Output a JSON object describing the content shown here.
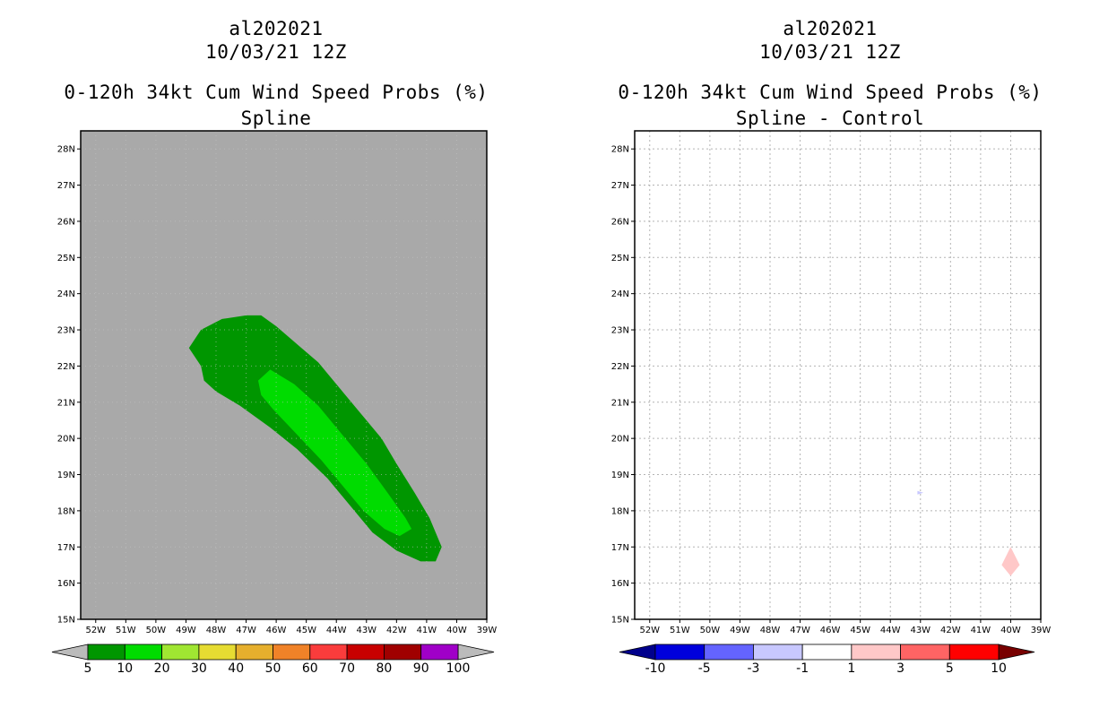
{
  "chart_data": [
    {
      "type": "heatmap",
      "storm_id": "al202021",
      "datetime": "10/03/21 12Z",
      "title": "0-120h 34kt Cum Wind Speed Probs (%)",
      "subtitle": "Spline",
      "x_ticks": [
        "52W",
        "51W",
        "50W",
        "49W",
        "48W",
        "47W",
        "46W",
        "45W",
        "44W",
        "43W",
        "42W",
        "41W",
        "40W",
        "39W"
      ],
      "y_ticks": [
        "15N",
        "16N",
        "17N",
        "18N",
        "19N",
        "20N",
        "21N",
        "22N",
        "23N",
        "24N",
        "25N",
        "26N",
        "27N",
        "28N"
      ],
      "xlim": [
        -52.5,
        -39
      ],
      "ylim": [
        15,
        28.5
      ],
      "background": "#a9a9a9",
      "contours": [
        {
          "level": "5-10",
          "color": "#009600",
          "lonlat": [
            [
              -48.9,
              22.5
            ],
            [
              -48.5,
              23.0
            ],
            [
              -47.8,
              23.3
            ],
            [
              -47.0,
              23.4
            ],
            [
              -46.5,
              23.4
            ],
            [
              -46.0,
              23.1
            ],
            [
              -45.3,
              22.6
            ],
            [
              -44.6,
              22.1
            ],
            [
              -44.0,
              21.5
            ],
            [
              -43.3,
              20.8
            ],
            [
              -42.5,
              20.0
            ],
            [
              -42.0,
              19.3
            ],
            [
              -41.4,
              18.5
            ],
            [
              -40.9,
              17.8
            ],
            [
              -40.5,
              17.0
            ],
            [
              -40.7,
              16.6
            ],
            [
              -41.2,
              16.6
            ],
            [
              -42.0,
              16.9
            ],
            [
              -42.8,
              17.4
            ],
            [
              -43.5,
              18.1
            ],
            [
              -44.3,
              18.9
            ],
            [
              -45.3,
              19.7
            ],
            [
              -46.2,
              20.3
            ],
            [
              -47.2,
              20.9
            ],
            [
              -48.0,
              21.3
            ],
            [
              -48.4,
              21.6
            ],
            [
              -48.5,
              22.0
            ]
          ]
        },
        {
          "level": "10-20",
          "color": "#00dc00",
          "lonlat": [
            [
              -46.6,
              21.6
            ],
            [
              -46.2,
              21.9
            ],
            [
              -45.4,
              21.5
            ],
            [
              -44.6,
              20.9
            ],
            [
              -43.8,
              20.1
            ],
            [
              -43.0,
              19.3
            ],
            [
              -42.3,
              18.5
            ],
            [
              -41.7,
              17.8
            ],
            [
              -41.5,
              17.5
            ],
            [
              -41.9,
              17.3
            ],
            [
              -42.4,
              17.5
            ],
            [
              -43.1,
              18.0
            ],
            [
              -43.8,
              18.7
            ],
            [
              -44.5,
              19.4
            ],
            [
              -45.3,
              20.1
            ],
            [
              -46.1,
              20.8
            ],
            [
              -46.5,
              21.2
            ]
          ]
        }
      ],
      "colorbar": {
        "labels": [
          "5",
          "10",
          "20",
          "30",
          "40",
          "50",
          "60",
          "70",
          "80",
          "90",
          "100"
        ],
        "colors": [
          "#009600",
          "#00dc00",
          "#a0e632",
          "#e6dc32",
          "#e6af2d",
          "#f08228",
          "#fa3c3c",
          "#c80000",
          "#a00000",
          "#a000c8"
        ],
        "end_color": "#bbbbbb"
      }
    },
    {
      "type": "heatmap",
      "storm_id": "al202021",
      "datetime": "10/03/21 12Z",
      "title": "0-120h 34kt Cum Wind Speed Probs (%)",
      "subtitle": "Spline - Control",
      "x_ticks": [
        "52W",
        "51W",
        "50W",
        "49W",
        "48W",
        "47W",
        "46W",
        "45W",
        "44W",
        "43W",
        "42W",
        "41W",
        "40W",
        "39W"
      ],
      "y_ticks": [
        "15N",
        "16N",
        "17N",
        "18N",
        "19N",
        "20N",
        "21N",
        "22N",
        "23N",
        "24N",
        "25N",
        "26N",
        "27N",
        "28N"
      ],
      "xlim": [
        -52.5,
        -39
      ],
      "ylim": [
        15,
        28.5
      ],
      "background": "#ffffff",
      "grid": true,
      "contours": [
        {
          "level": "-3 to -1",
          "color": "#c8c8ff",
          "lonlat": [
            [
              -43.1,
              18.55
            ],
            [
              -42.9,
              18.5
            ],
            [
              -43.1,
              18.45
            ]
          ]
        },
        {
          "level": "1 to 3",
          "color": "#ffc8c8",
          "lonlat": [
            [
              -40.0,
              17.0
            ],
            [
              -39.7,
              16.5
            ],
            [
              -40.0,
              16.2
            ],
            [
              -40.3,
              16.5
            ]
          ]
        }
      ],
      "colorbar": {
        "labels": [
          "-10",
          "-5",
          "-3",
          "-1",
          "1",
          "3",
          "5",
          "10"
        ],
        "colors": [
          "#0000dc",
          "#6464ff",
          "#c8c8ff",
          "#ffffff",
          "#ffc8c8",
          "#ff6464",
          "#ff0000"
        ],
        "low_color": "#00008c",
        "high_color": "#780000"
      }
    }
  ]
}
